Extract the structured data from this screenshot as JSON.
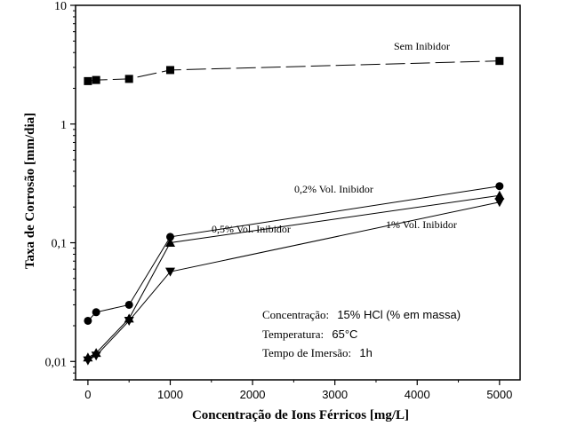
{
  "chart_data": {
    "type": "line",
    "xlabel": "Concentração de Ions Férricos [mg/L]",
    "ylabel": "Taxa de Corrosão [mm/dia]",
    "xlim": [
      -150,
      5250
    ],
    "ylim": [
      0.007,
      10
    ],
    "yscale": "log",
    "x_ticks": [
      0,
      1000,
      2000,
      3000,
      4000,
      5000
    ],
    "y_ticks": [
      0.01,
      0.1,
      1,
      10
    ],
    "y_tick_labels": [
      "0,01",
      "0,1",
      "1",
      "10"
    ],
    "grid": false,
    "series": [
      {
        "name": "Sem Inibidor",
        "marker": "square",
        "line": "long-dash",
        "x": [
          0,
          100,
          500,
          1000,
          5000
        ],
        "y": [
          2.3,
          2.35,
          2.4,
          2.85,
          3.4
        ]
      },
      {
        "name": "0,2% Vol. Inibidor",
        "marker": "circle",
        "line": "solid",
        "x": [
          0,
          100,
          500,
          1000,
          5000
        ],
        "y": [
          0.022,
          0.026,
          0.03,
          0.112,
          0.3
        ]
      },
      {
        "name": "0,5% Vol. Inibidor",
        "marker": "triangle-up",
        "line": "solid",
        "x": [
          0,
          100,
          500,
          1000,
          5000
        ],
        "y": [
          0.0108,
          0.0118,
          0.023,
          0.1,
          0.25
        ]
      },
      {
        "name": "1% Vol. Inibidor",
        "marker": "triangle-down",
        "line": "solid",
        "x": [
          0,
          100,
          500,
          1000,
          5000
        ],
        "y": [
          0.0102,
          0.0112,
          0.022,
          0.057,
          0.22
        ]
      }
    ],
    "annotations": [
      {
        "label": "Concentração:",
        "value": "15% HCl (% em massa)"
      },
      {
        "label": "Temperatura:",
        "value": "65°C"
      },
      {
        "label": "Tempo de Imersão:",
        "value": "1h"
      }
    ]
  }
}
